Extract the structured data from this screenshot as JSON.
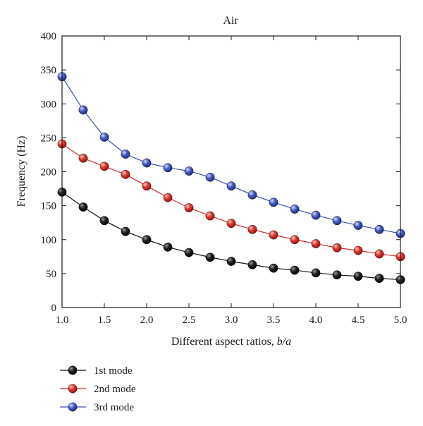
{
  "chart_data": {
    "type": "line",
    "title": "Air",
    "xlabel": "Different aspect ratios, ",
    "xlabel_italic": "b/a",
    "ylabel": "Frequency (Hz)",
    "xlim": [
      1.0,
      5.0
    ],
    "ylim": [
      0,
      400
    ],
    "x_ticks": [
      "1.0",
      "1.5",
      "2.0",
      "2.5",
      "3.0",
      "3.5",
      "4.0",
      "4.5",
      "5.0"
    ],
    "y_ticks": [
      "0",
      "50",
      "100",
      "150",
      "200",
      "250",
      "300",
      "350",
      "400"
    ],
    "x_tick_values": [
      1.0,
      1.5,
      2.0,
      2.5,
      3.0,
      3.5,
      4.0,
      4.5,
      5.0
    ],
    "y_tick_values": [
      0,
      50,
      100,
      150,
      200,
      250,
      300,
      350,
      400
    ],
    "grid": false,
    "legend_position": "below-left",
    "x": [
      1.0,
      1.25,
      1.5,
      1.75,
      2.0,
      2.25,
      2.5,
      2.75,
      3.0,
      3.25,
      3.5,
      3.75,
      4.0,
      4.25,
      4.5,
      4.75,
      5.0
    ],
    "series": [
      {
        "name": "1st mode",
        "color": "#111111",
        "values": [
          170,
          148,
          128,
          112,
          100,
          89,
          81,
          74,
          68,
          63,
          58,
          55,
          51,
          48,
          46,
          43,
          41
        ]
      },
      {
        "name": "2nd mode",
        "color": "#d42a2a",
        "values": [
          241,
          220,
          208,
          196,
          179,
          162,
          147,
          135,
          124,
          115,
          107,
          100,
          94,
          88,
          84,
          79,
          75
        ]
      },
      {
        "name": "3rd mode",
        "color": "#3a4fb0",
        "values": [
          340,
          291,
          251,
          226,
          213,
          206,
          201,
          192,
          179,
          166,
          155,
          145,
          136,
          128,
          121,
          115,
          109
        ]
      }
    ]
  }
}
